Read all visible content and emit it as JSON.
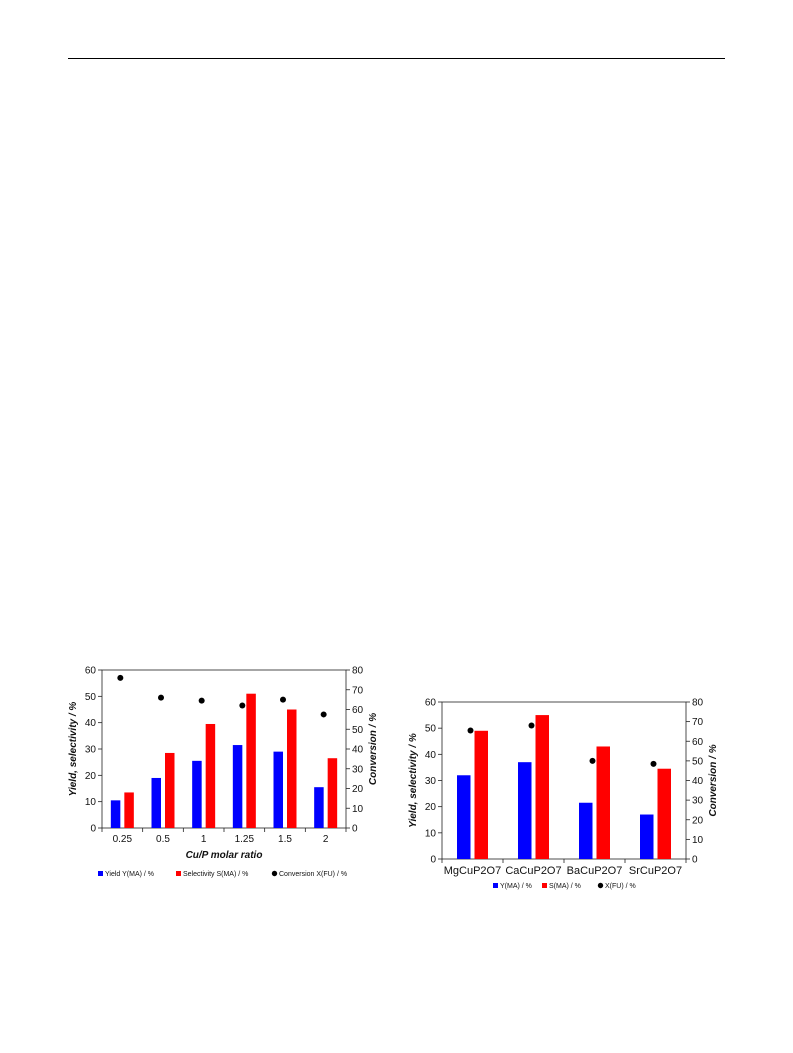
{
  "chart_data": [
    {
      "type": "bar",
      "xlabel": "Cu/P molar ratio",
      "ylabel": "Yield, selectivity / %",
      "y2label": "Conversion / %",
      "categories": [
        "0.25",
        "0.5",
        "1",
        "1.25",
        "1.5",
        "2"
      ],
      "ylim": [
        0,
        60
      ],
      "y2lim": [
        0,
        80
      ],
      "yticks": [
        "0",
        "10",
        "20",
        "30",
        "40",
        "50",
        "60"
      ],
      "y2ticks": [
        "0",
        "10",
        "20",
        "30",
        "40",
        "50",
        "60",
        "70",
        "80"
      ],
      "series": [
        {
          "name": "Yield Y(MA) / %",
          "type": "bar",
          "axis": "left",
          "color": "#0000ff",
          "values": [
            10.5,
            19,
            25.5,
            31.5,
            29,
            15.5
          ]
        },
        {
          "name": "Selectivity S(MA) / %",
          "type": "bar",
          "axis": "left",
          "color": "#ff0000",
          "values": [
            13.5,
            28.5,
            39.5,
            51,
            45,
            26.5
          ]
        },
        {
          "name": "Conversion X(FU) / %",
          "type": "scatter",
          "axis": "right",
          "color": "#000000",
          "values": [
            76,
            66,
            64.5,
            62,
            65,
            57.5
          ]
        }
      ],
      "legend": "bottom",
      "grid": false
    },
    {
      "type": "bar",
      "xlabel": "",
      "ylabel": "Yield, selectivity / %",
      "y2label": "Conversion / %",
      "categories": [
        "MgCuP2O7",
        "CaCuP2O7",
        "BaCuP2O7",
        "SrCuP2O7"
      ],
      "ylim": [
        0,
        60
      ],
      "y2lim": [
        0,
        80
      ],
      "yticks": [
        "0",
        "10",
        "20",
        "30",
        "40",
        "50",
        "60"
      ],
      "y2ticks": [
        "0",
        "10",
        "20",
        "30",
        "40",
        "50",
        "60",
        "70",
        "80"
      ],
      "series": [
        {
          "name": "Y(MA) / %",
          "type": "bar",
          "axis": "left",
          "color": "#0000ff",
          "values": [
            32,
            37,
            21.5,
            17
          ]
        },
        {
          "name": "S(MA) / %",
          "type": "bar",
          "axis": "left",
          "color": "#ff0000",
          "values": [
            49,
            55,
            43,
            34.5
          ]
        },
        {
          "name": "X(FU) / %",
          "type": "scatter",
          "axis": "right",
          "color": "#000000",
          "values": [
            65.5,
            68,
            50,
            48.5
          ]
        }
      ],
      "legend": "bottom",
      "grid": false
    }
  ]
}
